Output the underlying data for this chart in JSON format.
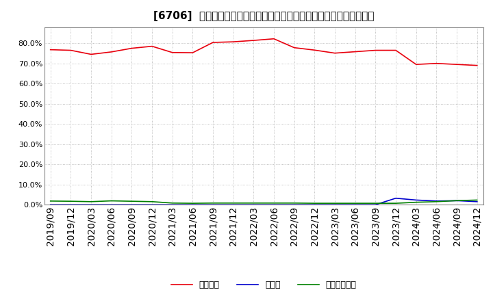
{
  "title": "[6706]  自己資本、のれん、繰延税金資産の総資産に対する比率の推移",
  "x_labels": [
    "2019/09",
    "2019/12",
    "2020/03",
    "2020/06",
    "2020/09",
    "2020/12",
    "2021/03",
    "2021/06",
    "2021/09",
    "2021/12",
    "2022/03",
    "2022/06",
    "2022/09",
    "2022/12",
    "2023/03",
    "2023/06",
    "2023/09",
    "2023/12",
    "2024/03",
    "2024/06",
    "2024/09",
    "2024/12"
  ],
  "equity": [
    76.8,
    76.5,
    74.5,
    75.7,
    77.5,
    78.5,
    75.4,
    75.3,
    80.4,
    80.7,
    81.4,
    82.2,
    77.8,
    76.6,
    75.1,
    75.8,
    76.5,
    76.5,
    69.5,
    70.0,
    69.5,
    69.0
  ],
  "noren": [
    0.0,
    0.0,
    0.0,
    0.0,
    0.0,
    0.0,
    0.0,
    0.0,
    0.0,
    0.0,
    0.0,
    0.0,
    0.0,
    0.0,
    0.0,
    0.0,
    0.0,
    3.2,
    2.3,
    1.8,
    2.0,
    1.5
  ],
  "deferred_tax": [
    1.8,
    1.7,
    1.5,
    1.9,
    1.7,
    1.5,
    0.8,
    0.7,
    0.8,
    0.8,
    0.8,
    0.8,
    0.8,
    0.7,
    0.7,
    0.7,
    0.7,
    0.7,
    1.2,
    1.5,
    2.0,
    2.3
  ],
  "equity_color": "#e8000d",
  "noren_color": "#0000cd",
  "deferred_tax_color": "#008000",
  "background_color": "#ffffff",
  "plot_bg_color": "#ffffff",
  "ylim": [
    0,
    88
  ],
  "yticks": [
    0,
    10,
    20,
    30,
    40,
    50,
    60,
    70,
    80
  ],
  "legend_labels": [
    "自己資本",
    "のれん",
    "繰延税金資産"
  ]
}
